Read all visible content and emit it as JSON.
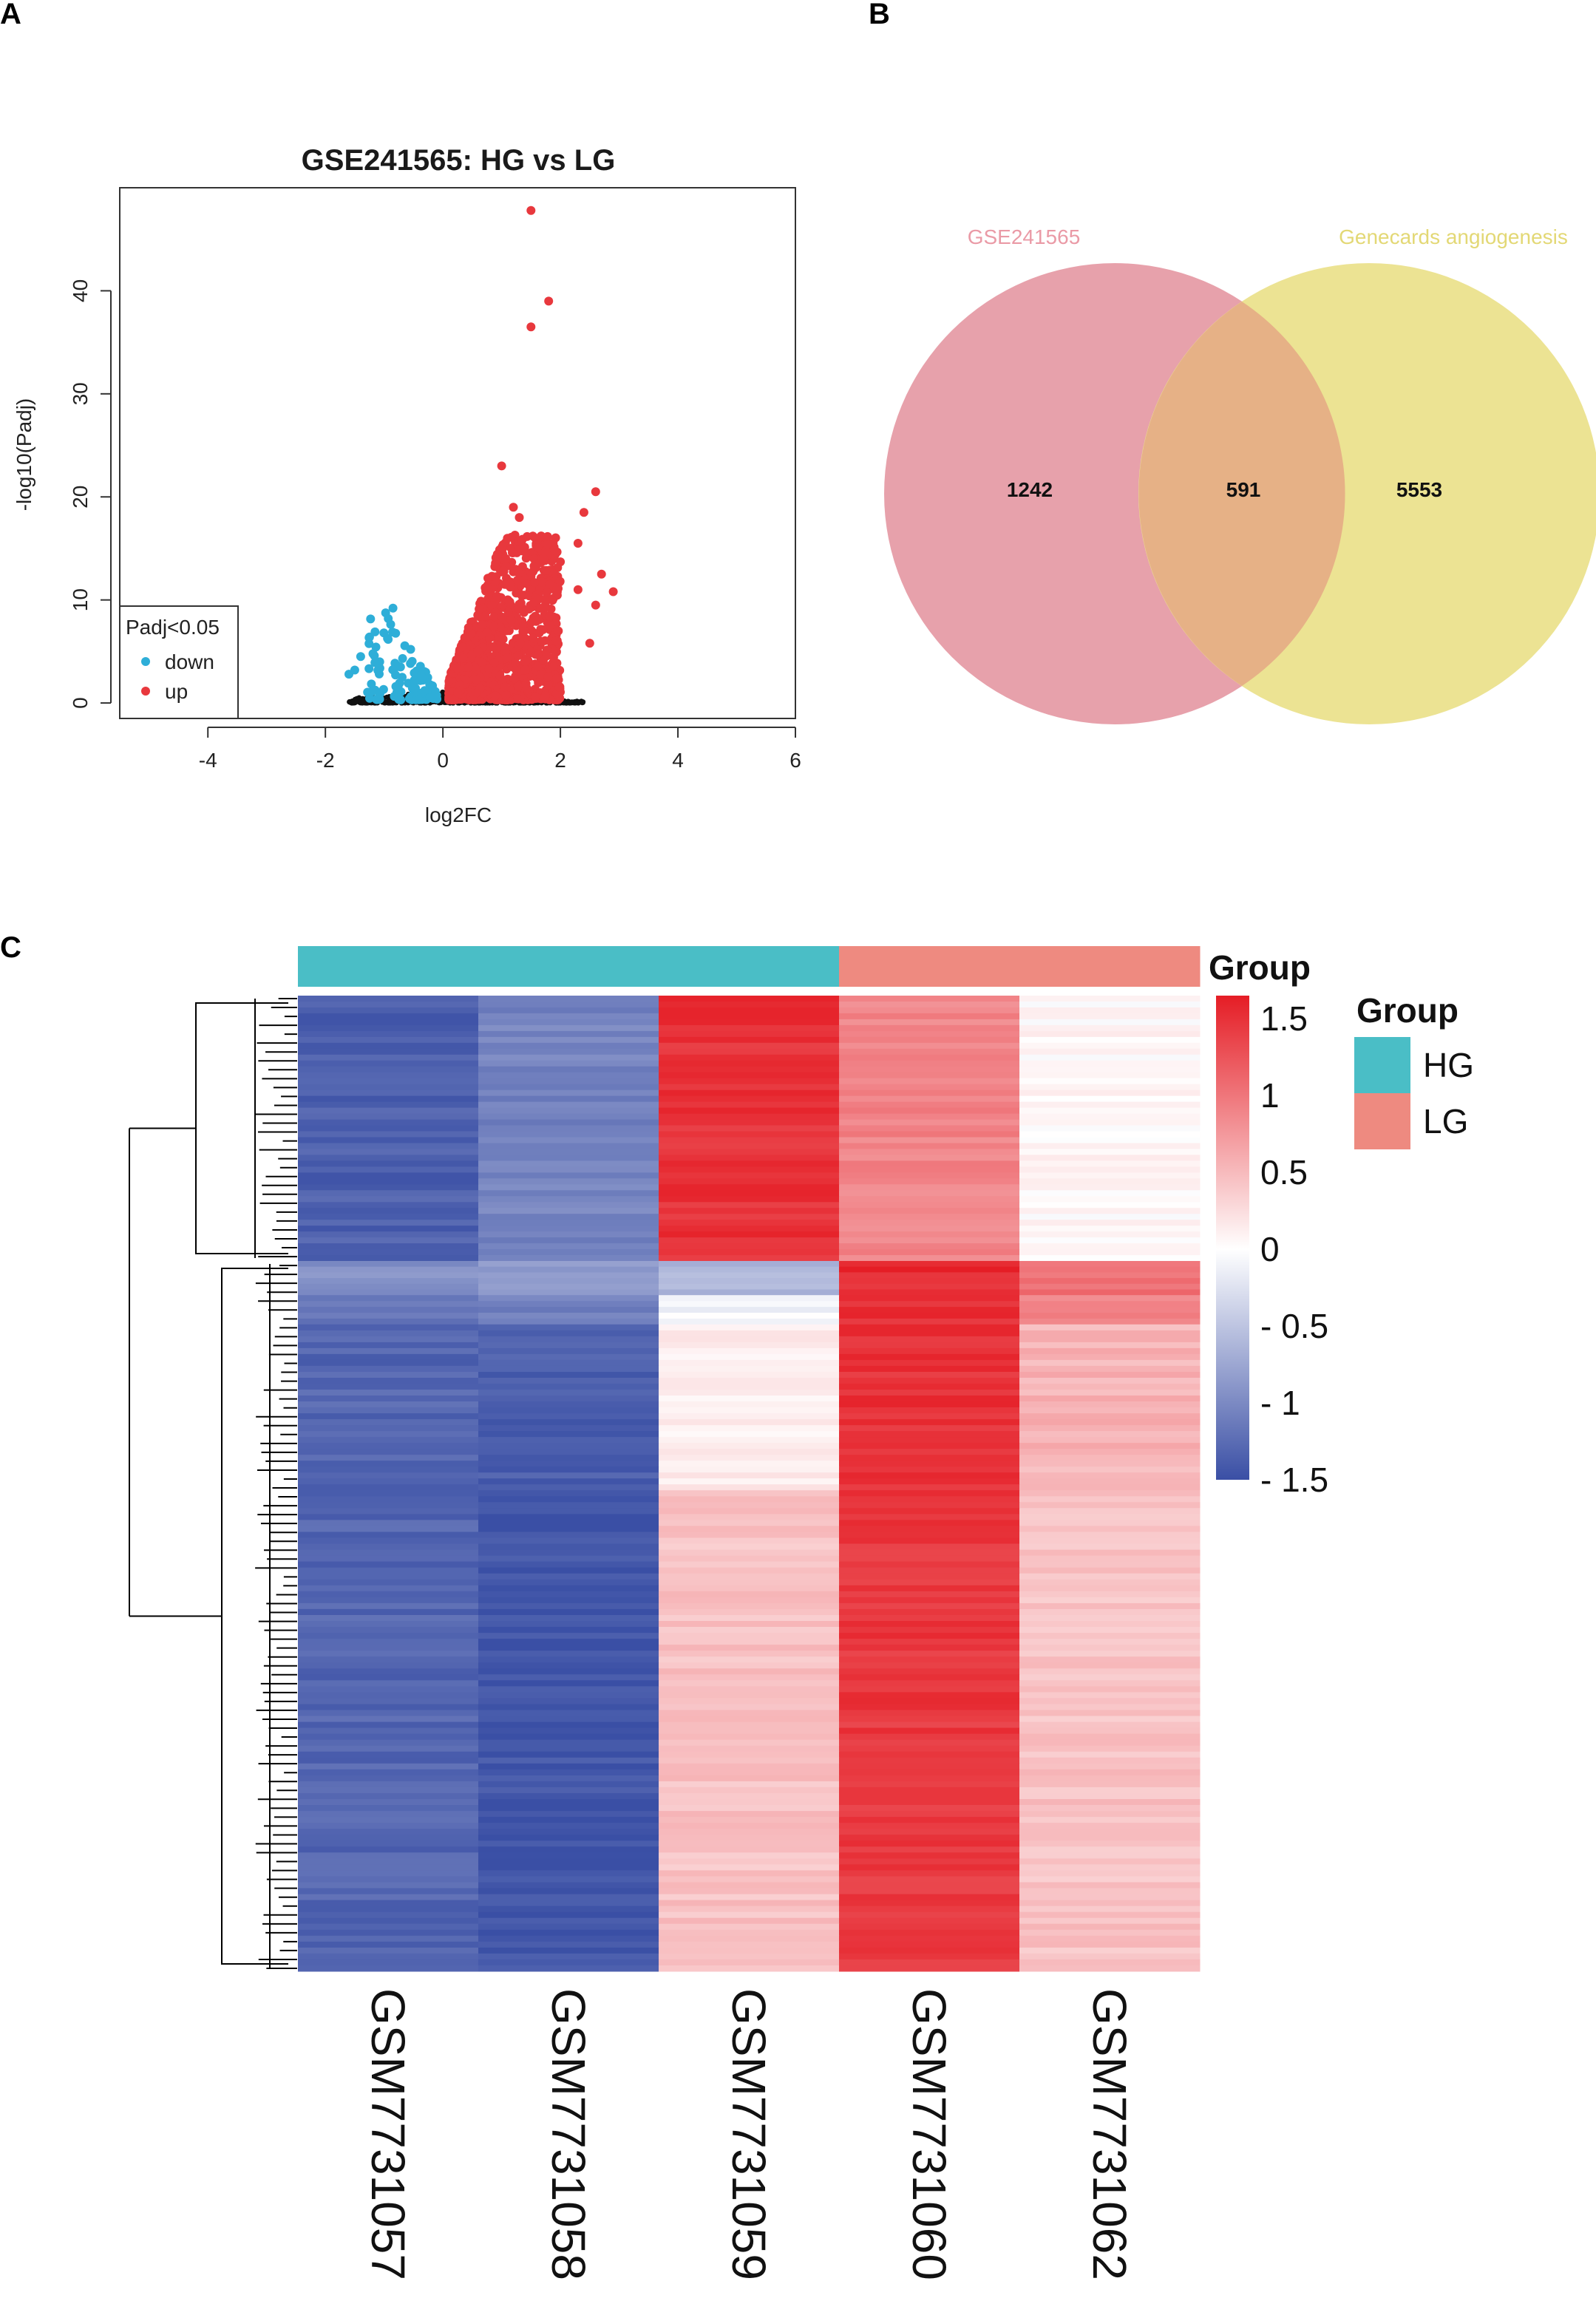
{
  "panels": {
    "a": "A",
    "b": "B",
    "c": "C"
  },
  "colors": {
    "up": "#e8383d",
    "down": "#2eaed8",
    "ns": "#111111",
    "venn_left": "#e7a1ab",
    "venn_right": "#ece393",
    "venn_overlap": "#e6b186",
    "venn_left_label": "#ea9aa6",
    "venn_right_label": "#e3d875",
    "hg": "#4abec6",
    "lg": "#ee8a80",
    "heat_low": "#3a4fa5",
    "heat_mid": "#ffffff",
    "heat_high": "#e51d25"
  },
  "chart_data": [
    {
      "type": "scatter",
      "title": "GSE241565: HG vs LG",
      "xlabel": "log2FC",
      "ylabel": "-log10(Padj)",
      "xlim": [
        -5.5,
        6
      ],
      "ylim": [
        -1.5,
        50
      ],
      "xticks": [
        "-4",
        "-2",
        "0",
        "2",
        "4",
        "6"
      ],
      "yticks": [
        "0",
        "10",
        "20",
        "30",
        "40"
      ],
      "legend": {
        "title": "Padj<0.05",
        "entries": [
          "down",
          "up"
        ],
        "position": "bottom-left"
      },
      "highlight_points": {
        "up": [
          [
            1.5,
            47.8
          ],
          [
            1.8,
            39
          ],
          [
            1.5,
            36.5
          ],
          [
            1.0,
            23
          ],
          [
            2.6,
            20.5
          ],
          [
            2.4,
            18.5
          ],
          [
            2.3,
            15.5
          ],
          [
            2.7,
            12.5
          ],
          [
            2.0,
            13.7
          ],
          [
            2.9,
            10.8
          ],
          [
            2.6,
            9.5
          ],
          [
            2.3,
            11
          ],
          [
            2.5,
            5.8
          ],
          [
            1.2,
            19
          ],
          [
            1.3,
            18
          ]
        ],
        "down": [
          [
            -0.85,
            9.2
          ],
          [
            -1.6,
            2.8
          ],
          [
            -1.5,
            3.2
          ],
          [
            -1.4,
            4.5
          ]
        ]
      },
      "clusters": {
        "up": {
          "x_range": [
            0.1,
            2.0
          ],
          "y_max": 16,
          "count": 1242
        },
        "down": {
          "x_range": [
            -1.3,
            -0.1
          ],
          "y_max": 8.5,
          "count": 110
        },
        "ns": {
          "x_range": [
            -1.6,
            2.4
          ],
          "y_max": 1.2,
          "count": 600
        }
      }
    },
    {
      "type": "venn",
      "sets": [
        "GSE241565",
        "Genecards angiogenesis"
      ],
      "counts": {
        "left_only": "1242",
        "overlap": "591",
        "right_only": "5553"
      }
    },
    {
      "type": "heatmap",
      "title": "Group",
      "samples": [
        "GSM7731057",
        "GSM7731058",
        "GSM7731059",
        "GSM7731060",
        "GSM7731062"
      ],
      "groups": [
        "HG",
        "HG",
        "HG",
        "LG",
        "LG"
      ],
      "group_legend": {
        "title": "Group",
        "entries": [
          "HG",
          "LG"
        ]
      },
      "color_scale": {
        "min": -1.5,
        "max": 1.65,
        "ticks": [
          "1.5",
          "1",
          "0.5",
          "0",
          "- 0.5",
          "- 1",
          "- 1.5"
        ]
      },
      "row_blocks": [
        {
          "fraction": 0.272,
          "values": [
            -1.35,
            -1.05,
            1.5,
            0.9,
            0.05
          ]
        },
        {
          "fraction": 0.035,
          "values": [
            -0.95,
            -0.9,
            -0.6,
            1.55,
            1.05
          ]
        },
        {
          "fraction": 0.03,
          "values": [
            -1.15,
            -1.1,
            -0.1,
            1.5,
            0.9
          ]
        },
        {
          "fraction": 0.17,
          "values": [
            -1.3,
            -1.35,
            0.15,
            1.5,
            0.55
          ]
        },
        {
          "fraction": 0.493,
          "values": [
            -1.3,
            -1.45,
            0.45,
            1.45,
            0.45
          ]
        }
      ]
    }
  ]
}
